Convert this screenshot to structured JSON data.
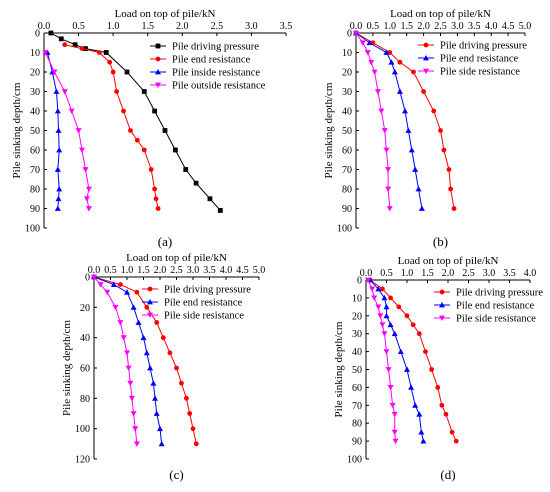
{
  "chart_data": [
    {
      "panel_label": "(a)",
      "type": "line",
      "xlabel": "Load on top of pile/kN",
      "ylabel": "Pile sinking depth/cm",
      "xlim": [
        0,
        3.5
      ],
      "ylim": [
        0,
        100
      ],
      "x_ticks": [
        "0.0",
        "0.5",
        "1.0",
        "1.5",
        "2.0",
        "2.5",
        "3.0",
        "3.5"
      ],
      "y_ticks": [
        "0",
        "10",
        "20",
        "30",
        "40",
        "50",
        "60",
        "70",
        "80",
        "90",
        "100"
      ],
      "y_inverted": true,
      "legend_position": "top-right",
      "series": [
        {
          "name": "Pile driving pressure",
          "color": "#000000",
          "marker": "square",
          "x": [
            0.1,
            0.25,
            0.45,
            0.6,
            0.9,
            1.2,
            1.45,
            1.6,
            1.75,
            1.9,
            2.05,
            2.2,
            2.4,
            2.55
          ],
          "y": [
            0,
            3,
            6,
            8,
            10,
            20,
            30,
            40,
            50,
            60,
            70,
            77,
            85,
            91
          ]
        },
        {
          "name": "Pile end resistance",
          "color": "#ff0000",
          "marker": "circle",
          "x": [
            0.3,
            0.55,
            0.8,
            0.95,
            1.0,
            1.05,
            1.15,
            1.25,
            1.35,
            1.45,
            1.55,
            1.6,
            1.62,
            1.65
          ],
          "y": [
            6,
            8,
            10,
            15,
            20,
            30,
            40,
            50,
            55,
            60,
            70,
            80,
            85,
            90
          ]
        },
        {
          "name": "Pile inside resistance",
          "color": "#0000ff",
          "marker": "triangle",
          "x": [
            0.05,
            0.12,
            0.18,
            0.2,
            0.21,
            0.22,
            0.2,
            0.22,
            0.21,
            0.2
          ],
          "y": [
            10,
            20,
            30,
            40,
            50,
            60,
            70,
            80,
            85,
            90
          ]
        },
        {
          "name": "Pile outside resistance",
          "color": "#ff00ff",
          "marker": "triangle-down",
          "x": [
            0.02,
            0.15,
            0.3,
            0.4,
            0.5,
            0.55,
            0.6,
            0.65,
            0.62,
            0.65
          ],
          "y": [
            10,
            20,
            30,
            40,
            50,
            60,
            70,
            80,
            85,
            90
          ]
        }
      ]
    },
    {
      "panel_label": "(b)",
      "type": "line",
      "xlabel": "Load on top of pile/kN",
      "ylabel": "Pile sinking depth/cm",
      "xlim": [
        0,
        5.0
      ],
      "ylim": [
        0,
        100
      ],
      "x_ticks": [
        "0.0",
        "0.5",
        "1.0",
        "1.5",
        "2.0",
        "2.5",
        "3.0",
        "3.5",
        "4.0",
        "4.5",
        "5.0"
      ],
      "y_ticks": [
        "0",
        "10",
        "20",
        "30",
        "40",
        "50",
        "60",
        "70",
        "80",
        "90",
        "100"
      ],
      "y_inverted": true,
      "legend_position": "top-right",
      "series": [
        {
          "name": "Pile driving pressure",
          "color": "#ff0000",
          "marker": "circle",
          "x": [
            0.0,
            0.5,
            1.0,
            1.3,
            1.7,
            2.0,
            2.3,
            2.5,
            2.6,
            2.75,
            2.8,
            2.9
          ],
          "y": [
            0,
            5,
            10,
            15,
            20,
            30,
            40,
            50,
            60,
            70,
            80,
            90
          ]
        },
        {
          "name": "Pile end resistance",
          "color": "#0000ff",
          "marker": "triangle",
          "x": [
            0.0,
            0.4,
            0.9,
            1.05,
            1.15,
            1.3,
            1.45,
            1.55,
            1.65,
            1.75,
            1.85,
            1.95
          ],
          "y": [
            0,
            5,
            10,
            15,
            20,
            30,
            40,
            50,
            60,
            70,
            80,
            90
          ]
        },
        {
          "name": "Pile side resistance",
          "color": "#ff00ff",
          "marker": "triangle-down",
          "x": [
            0.0,
            0.2,
            0.35,
            0.45,
            0.55,
            0.65,
            0.75,
            0.85,
            0.9,
            0.95,
            0.95,
            1.0
          ],
          "y": [
            0,
            5,
            10,
            15,
            20,
            30,
            40,
            50,
            60,
            70,
            80,
            90
          ]
        }
      ]
    },
    {
      "panel_label": "(c)",
      "type": "line",
      "xlabel": "Load on top of pile/kN",
      "ylabel": "Pile sinking depth/cm",
      "xlim": [
        0,
        5.0
      ],
      "ylim": [
        0,
        120
      ],
      "x_ticks": [
        "0.0",
        "0.5",
        "1.0",
        "1.5",
        "2.0",
        "2.5",
        "3.0",
        "3.5",
        "4.0",
        "4.5",
        "5.0"
      ],
      "y_ticks": [
        "0",
        "20",
        "40",
        "60",
        "80",
        "100",
        "120"
      ],
      "y_inverted": true,
      "legend_position": "top-right",
      "series": [
        {
          "name": "Pile driving pressure",
          "color": "#ff0000",
          "marker": "circle",
          "x": [
            0.0,
            0.8,
            1.3,
            1.6,
            1.9,
            2.1,
            2.3,
            2.5,
            2.65,
            2.8,
            2.9,
            3.0,
            3.1
          ],
          "y": [
            0,
            5,
            10,
            20,
            30,
            40,
            50,
            60,
            70,
            80,
            90,
            100,
            110
          ]
        },
        {
          "name": "Pile end resistance",
          "color": "#0000ff",
          "marker": "triangle",
          "x": [
            0.0,
            0.6,
            1.0,
            1.2,
            1.35,
            1.5,
            1.6,
            1.7,
            1.8,
            1.85,
            1.9,
            2.0,
            2.05
          ],
          "y": [
            0,
            5,
            10,
            20,
            30,
            40,
            50,
            60,
            70,
            80,
            90,
            100,
            110
          ]
        },
        {
          "name": "Pile side resistance",
          "color": "#ff00ff",
          "marker": "triangle-down",
          "x": [
            0.0,
            0.2,
            0.4,
            0.65,
            0.8,
            0.9,
            1.0,
            1.05,
            1.1,
            1.15,
            1.2,
            1.25,
            1.3
          ],
          "y": [
            0,
            5,
            10,
            20,
            30,
            40,
            50,
            60,
            70,
            80,
            90,
            100,
            110
          ]
        }
      ]
    },
    {
      "panel_label": "(d)",
      "type": "line",
      "xlabel": "Load on top of pile/kN",
      "ylabel": "Pile sinking depth/cm",
      "xlim": [
        0,
        4.0
      ],
      "ylim": [
        0,
        100
      ],
      "x_ticks": [
        "0.0",
        "0.5",
        "1.0",
        "1.5",
        "2.0",
        "2.5",
        "3.0",
        "3.5",
        "4.0"
      ],
      "y_ticks": [
        "0",
        "10",
        "20",
        "30",
        "40",
        "50",
        "60",
        "70",
        "80",
        "90",
        "100"
      ],
      "y_inverted": true,
      "legend_position": "top-right",
      "series": [
        {
          "name": "Pile driving pressure",
          "color": "#ff0000",
          "marker": "circle",
          "x": [
            0.1,
            0.4,
            0.6,
            0.8,
            1.0,
            1.15,
            1.3,
            1.45,
            1.6,
            1.75,
            1.85,
            1.95,
            2.1,
            2.2
          ],
          "y": [
            0,
            5,
            10,
            15,
            20,
            25,
            30,
            40,
            50,
            60,
            70,
            75,
            85,
            90
          ]
        },
        {
          "name": "Pile end resistance",
          "color": "#0000ff",
          "marker": "triangle",
          "x": [
            0.1,
            0.3,
            0.45,
            0.5,
            0.5,
            0.6,
            0.7,
            0.85,
            1.0,
            1.1,
            1.2,
            1.3,
            1.35,
            1.4
          ],
          "y": [
            0,
            5,
            10,
            15,
            20,
            25,
            30,
            40,
            50,
            60,
            70,
            75,
            85,
            90
          ]
        },
        {
          "name": "Pile side resistance",
          "color": "#ff00ff",
          "marker": "triangle-down",
          "x": [
            0.05,
            0.15,
            0.2,
            0.3,
            0.35,
            0.4,
            0.45,
            0.5,
            0.55,
            0.6,
            0.65,
            0.7,
            0.7,
            0.72
          ],
          "y": [
            0,
            5,
            10,
            15,
            20,
            25,
            30,
            40,
            50,
            60,
            70,
            75,
            85,
            90
          ]
        }
      ]
    }
  ]
}
